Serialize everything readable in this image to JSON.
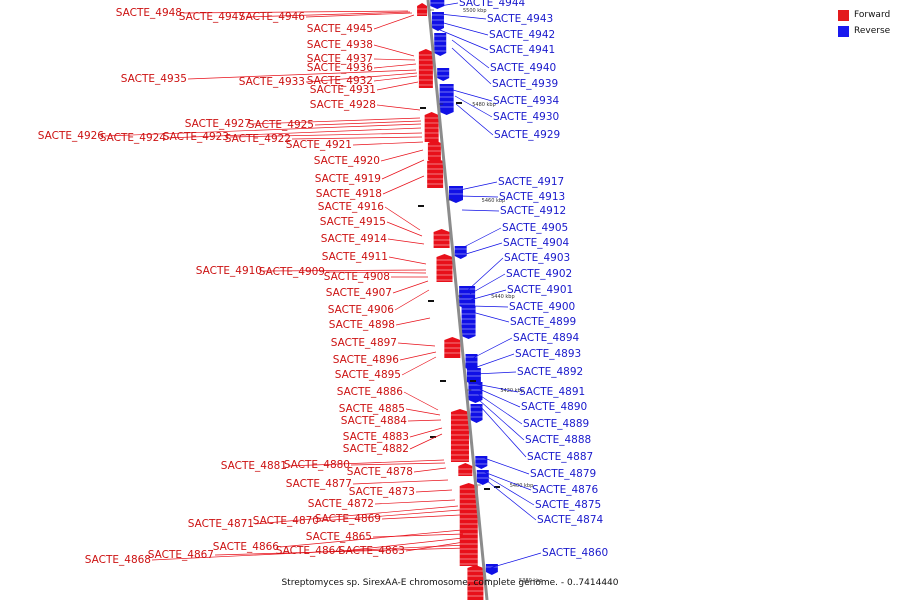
{
  "caption": "Streptomyces sp. SirexAA-E chromosome, complete genome. - 0..7414440",
  "legend": [
    {
      "label": "Forward",
      "color": "#e31a1c"
    },
    {
      "label": "Reverse",
      "color": "#1a1aee"
    }
  ],
  "colors": {
    "forward": "#e8101a",
    "reverse": "#1010e6",
    "axis": "#8c8c8c",
    "forward_text": "#cc1111",
    "reverse_text": "#1a1acc"
  },
  "ticks": [
    "5500 kbp",
    "5480 kbp",
    "5460 kbp",
    "5440 kbp",
    "5420 kbp",
    "5400 kbp",
    "5380 kbp"
  ],
  "forward_genes": [
    "SACTE_4948",
    "SACTE_4947",
    "SACTE_4946",
    "SACTE_4945",
    "SACTE_4938",
    "SACTE_4937",
    "SACTE_4936",
    "SACTE_4935",
    "SACTE_4933",
    "SACTE_4932",
    "SACTE_4931",
    "SACTE_4928",
    "SACTE_4927",
    "SACTE_4925",
    "SACTE_4926",
    "SACTE_4924",
    "SACTE_4923",
    "SACTE_4922",
    "SACTE_4921",
    "SACTE_4920",
    "SACTE_4919",
    "SACTE_4918",
    "SACTE_4916",
    "SACTE_4915",
    "SACTE_4914",
    "SACTE_4911",
    "SACTE_4910",
    "SACTE_4909",
    "SACTE_4908",
    "SACTE_4907",
    "SACTE_4906",
    "SACTE_4898",
    "SACTE_4897",
    "SACTE_4896",
    "SACTE_4895",
    "SACTE_4886",
    "SACTE_4885",
    "SACTE_4884",
    "SACTE_4883",
    "SACTE_4882",
    "SACTE_4881",
    "SACTE_4880",
    "SACTE_4878",
    "SACTE_4877",
    "SACTE_4873",
    "SACTE_4872",
    "SACTE_4871",
    "SACTE_4870",
    "SACTE_4869",
    "SACTE_4866",
    "SACTE_4865",
    "SACTE_4864",
    "SACTE_4863",
    "SACTE_4868",
    "SACTE_4867"
  ],
  "reverse_genes": [
    "SACTE_4944",
    "SACTE_4943",
    "SACTE_4942",
    "SACTE_4941",
    "SACTE_4940",
    "SACTE_4939",
    "SACTE_4934",
    "SACTE_4930",
    "SACTE_4929",
    "SACTE_4917",
    "SACTE_4913",
    "SACTE_4912",
    "SACTE_4905",
    "SACTE_4904",
    "SACTE_4903",
    "SACTE_4902",
    "SACTE_4901",
    "SACTE_4900",
    "SACTE_4899",
    "SACTE_4894",
    "SACTE_4893",
    "SACTE_4892",
    "SACTE_4891",
    "SACTE_4890",
    "SACTE_4889",
    "SACTE_4888",
    "SACTE_4887",
    "SACTE_4879",
    "SACTE_4876",
    "SACTE_4875",
    "SACTE_4874",
    "SACTE_4860"
  ]
}
